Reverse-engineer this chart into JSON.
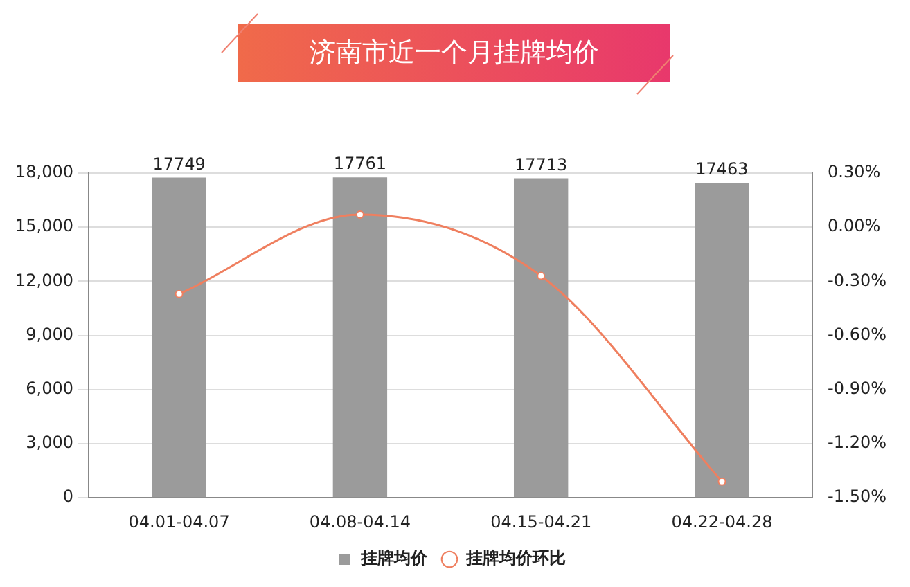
{
  "chart_data": {
    "type": "bar",
    "title": "济南市近一个月挂牌均价",
    "categories": [
      "04.01-04.07",
      "04.08-04.14",
      "04.15-04.21",
      "04.22-04.28"
    ],
    "series": [
      {
        "name": "挂牌均价",
        "color": "#9b9b9b",
        "values": [
          17749,
          17761,
          17713,
          17463
        ],
        "data_labels": true
      },
      {
        "name": "挂牌均价环比",
        "type": "line",
        "axis": "y2",
        "color": "#ef7f5f",
        "values": [
          -0.37,
          0.07,
          -0.27,
          -1.41
        ],
        "marker": "circle"
      }
    ],
    "ylim": [
      0,
      18000
    ],
    "yticks": [
      {
        "value": 0,
        "label": "0"
      },
      {
        "value": 3000,
        "label": "3,000"
      },
      {
        "value": 6000,
        "label": "6,000"
      },
      {
        "value": 9000,
        "label": "9,000"
      },
      {
        "value": 12000,
        "label": "12,000"
      },
      {
        "value": 15000,
        "label": "15,000"
      },
      {
        "value": 18000,
        "label": "18,000"
      }
    ],
    "y2lim": [
      -1.5,
      0.3
    ],
    "y2ticks": [
      {
        "value": -1.5,
        "label": "-1.50%"
      },
      {
        "value": -1.2,
        "label": "-1.20%"
      },
      {
        "value": -0.9,
        "label": "-0.90%"
      },
      {
        "value": -0.6,
        "label": "-0.60%"
      },
      {
        "value": -0.3,
        "label": "-0.30%"
      },
      {
        "value": 0,
        "label": "0.00%"
      },
      {
        "value": 0.3,
        "label": "0.30%"
      }
    ],
    "grid": "y",
    "legend": "bottom"
  }
}
